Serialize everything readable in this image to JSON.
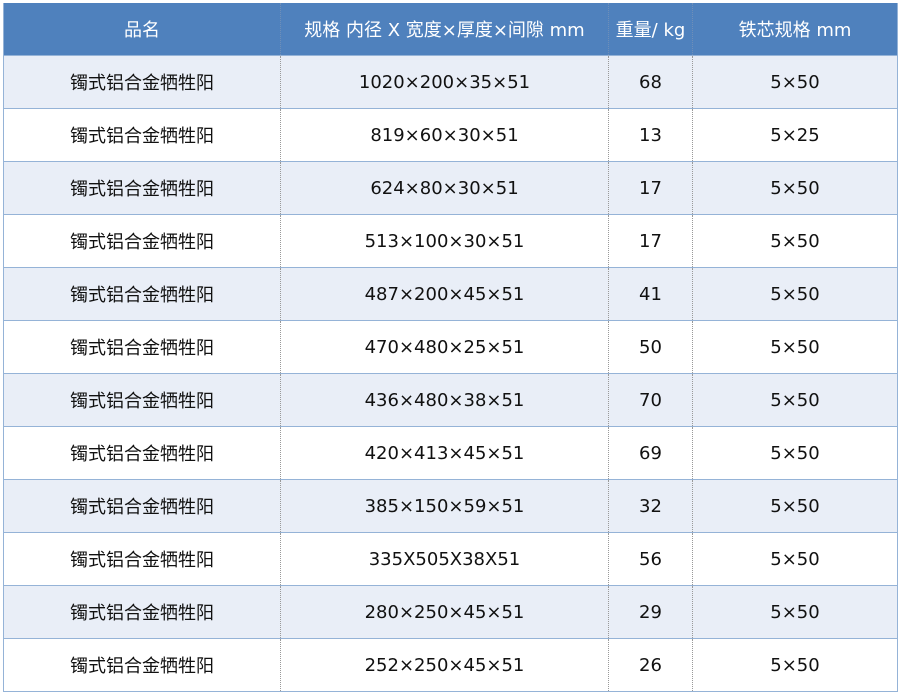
{
  "headers": [
    "品名",
    "规格  内径 X 宽度×厚度×间隙 mm",
    "重量/ kg",
    "铁芯规格 mm"
  ],
  "rows": [
    [
      "镯式铝合金牺牲阳",
      "1020×200×35×51",
      "68",
      "5×50"
    ],
    [
      "镯式铝合金牺牲阳",
      "819×60×30×51",
      "13",
      "5×25"
    ],
    [
      "镯式铝合金牺牲阳",
      "624×80×30×51",
      "17",
      "5×50"
    ],
    [
      "镯式铝合金牺牲阳",
      "513×100×30×51",
      "17",
      "5×50"
    ],
    [
      "镯式铝合金牺牲阳",
      "487×200×45×51",
      "41",
      "5×50"
    ],
    [
      "镯式铝合金牺牲阳",
      "470×480×25×51",
      "50",
      "5×50"
    ],
    [
      "镯式铝合金牺牲阳",
      "436×480×38×51",
      "70",
      "5×50"
    ],
    [
      "镯式铝合金牺牲阳",
      "420×413×45×51",
      "69",
      "5×50"
    ],
    [
      "镯式铝合金牺牲阳",
      "385×150×59×51",
      "32",
      "5×50"
    ],
    [
      "镯式铝合金牺牲阳",
      "335X505X38X51",
      "56",
      "5×50"
    ],
    [
      "镯式铝合金牺牲阳",
      "280×250×45×51",
      "29",
      "5×50"
    ],
    [
      "镯式铝合金牺牲阳",
      "252×250×45×51",
      "26",
      "5×50"
    ]
  ],
  "colors": {
    "header": "#4f81bd",
    "stripe": "#e9eef7",
    "border": "#95b3d7"
  }
}
